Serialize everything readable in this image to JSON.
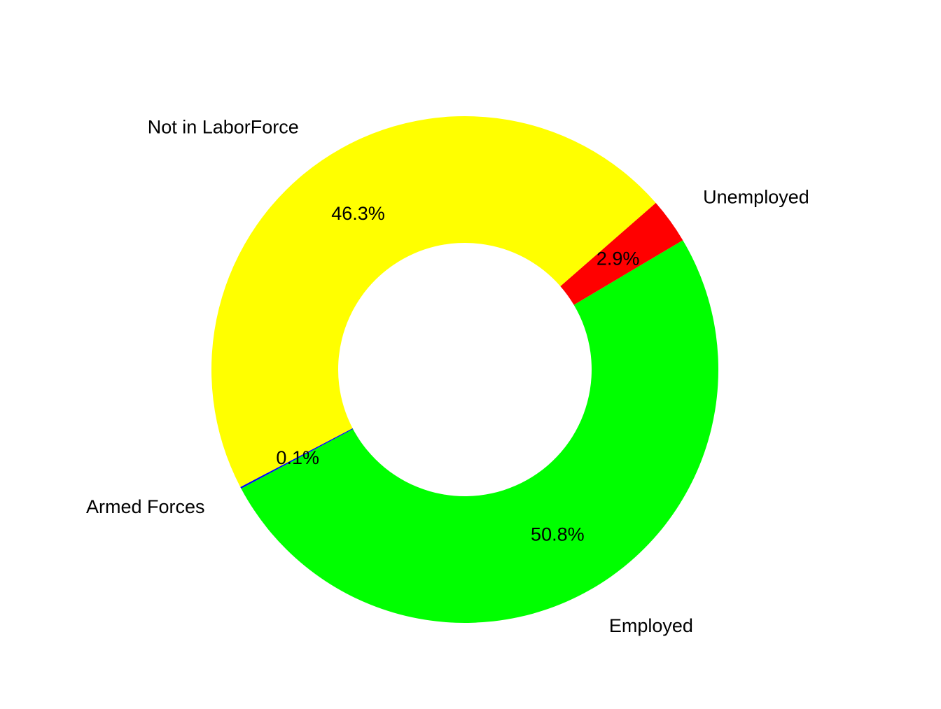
{
  "chart_data": {
    "type": "pie",
    "variant": "donut",
    "title": "",
    "legend": "none",
    "slices": [
      {
        "name": "Employed",
        "value": 50.8,
        "label": "50.8%",
        "color": "#00ff00"
      },
      {
        "name": "Unemployed",
        "value": 2.9,
        "label": "2.9%",
        "color": "#ff0000"
      },
      {
        "name": "Not in LaborForce",
        "value": 46.3,
        "label": "46.3%",
        "color": "#ffff00"
      },
      {
        "name": "Armed Forces",
        "value": 0.1,
        "label": "0.1%",
        "color": "#0000ff"
      }
    ]
  }
}
